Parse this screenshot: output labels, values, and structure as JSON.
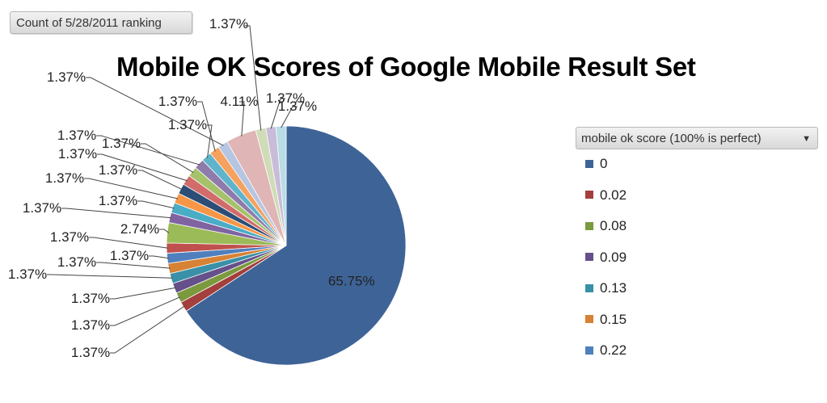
{
  "field_button": {
    "label": "Count of 5/28/2011 ranking"
  },
  "chart_data": {
    "type": "pie",
    "title": "Mobile OK Scores of Google Mobile Result Set",
    "legend_title": "mobile ok score (100% is perfect)",
    "legend_placement": "right",
    "slices": [
      {
        "category": "0",
        "value": 65.75,
        "label": "65.75%",
        "color": "#3e6397"
      },
      {
        "category": "0.02",
        "value": 1.37,
        "label": "1.37%",
        "color": "#a33f3c"
      },
      {
        "category": "0.08",
        "value": 1.37,
        "label": "1.37%",
        "color": "#7b9a3d"
      },
      {
        "category": "0.09",
        "value": 1.37,
        "label": "1.37%",
        "color": "#65508a"
      },
      {
        "category": "0.13",
        "value": 1.37,
        "label": "1.37%",
        "color": "#3990a8"
      },
      {
        "category": "0.15",
        "value": 1.37,
        "label": "1.37%",
        "color": "#d78234"
      },
      {
        "category": "0.22",
        "value": 1.37,
        "label": "1.37%",
        "color": "#4f7fbd"
      },
      {
        "category": "",
        "value": 1.37,
        "label": "1.37%",
        "color": "#c0504d"
      },
      {
        "category": "",
        "value": 2.74,
        "label": "2.74%",
        "color": "#9bbb59"
      },
      {
        "category": "",
        "value": 1.37,
        "label": "1.37%",
        "color": "#8064a2"
      },
      {
        "category": "",
        "value": 1.37,
        "label": "1.37%",
        "color": "#4bacc6"
      },
      {
        "category": "",
        "value": 1.37,
        "label": "1.37%",
        "color": "#f79646"
      },
      {
        "category": "",
        "value": 1.37,
        "label": "1.37%",
        "color": "#2c4d75"
      },
      {
        "category": "",
        "value": 1.37,
        "label": "1.37%",
        "color": "#d16c6a"
      },
      {
        "category": "",
        "value": 1.37,
        "label": "1.37%",
        "color": "#a5c26b"
      },
      {
        "category": "",
        "value": 1.37,
        "label": "1.37%",
        "color": "#8e7bab"
      },
      {
        "category": "",
        "value": 1.37,
        "label": "1.37%",
        "color": "#5fb4cc"
      },
      {
        "category": "",
        "value": 1.37,
        "label": "1.37%",
        "color": "#f6a15e"
      },
      {
        "category": "",
        "value": 1.37,
        "label": "1.37%",
        "color": "#b6c5e2"
      },
      {
        "category": "",
        "value": 4.11,
        "label": "4.11%",
        "color": "#dfb6b5"
      },
      {
        "category": "",
        "value": 1.37,
        "label": "1.37%",
        "color": "#cfdcb7"
      },
      {
        "category": "",
        "value": 1.37,
        "label": "1.37%",
        "color": "#c8bcd9"
      },
      {
        "category": "",
        "value": 1.37,
        "label": "1.37%",
        "color": "#b9dce6"
      }
    ]
  }
}
